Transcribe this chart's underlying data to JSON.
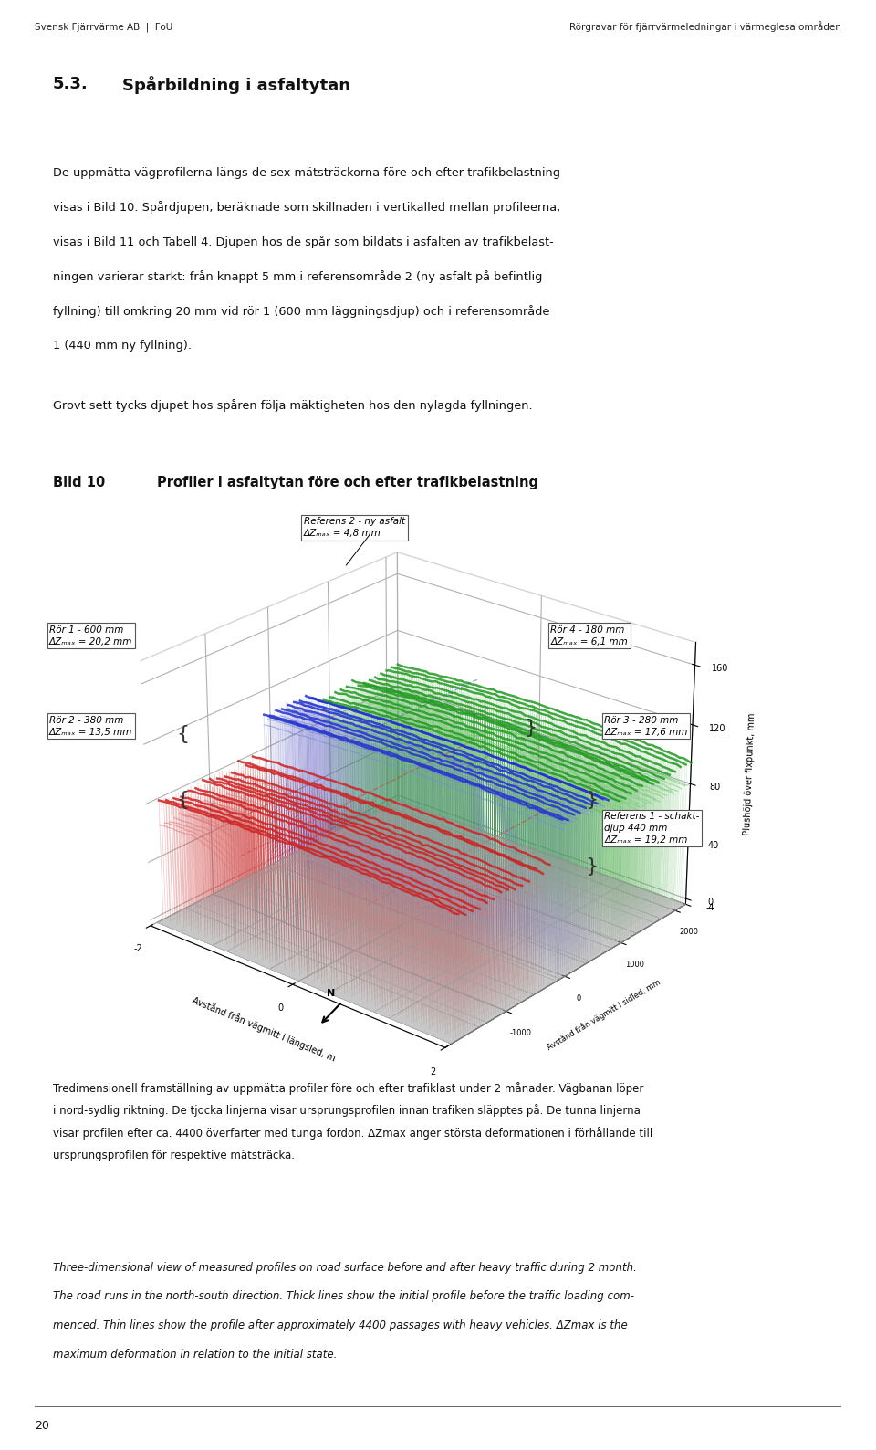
{
  "page_bg": "#ffffff",
  "header_left": "Svensk Fjärrvärme AB  |  FoU",
  "header_right": "Rörgravar för fjärrvärmeledningar i värmeglesa områden",
  "section_title_num": "5.3.",
  "section_title_text": "Spårbildning i asfaltytan",
  "body_text1_lines": [
    "De uppmätta vägprofilerna längs de sex mätsträckorna före och efter trafikbelastning",
    "visas i Bild 10. Spårdjupen, beräknade som skillnaden i vertikalled mellan profileerna,",
    "visas i Bild 11 och Tabell 4. Djupen hos de spår som bildats i asfalten av trafikbelast-",
    "ningen varierar starkt: från knappt 5 mm i referensområde 2 (ny asfalt på befintlig",
    "fyllning) till omkring 20 mm vid rör 1 (600 mm läggningsdjup) och i referensområde",
    "1 (440 mm ny fyllning)."
  ],
  "body_text2": "Grovt sett tycks djupet hos spåren följa mäktigheten hos den nylagda fyllningen.",
  "bild_label": "Bild 10",
  "bild_title": "Profiler i asfaltytan före och efter trafikbelastning",
  "ylabel_3d": "Plushöjd över fixpunkt, mm",
  "xlabel_3d": "Avstånd från vägmitt i längsled, m",
  "zlabel_3d": "Avstånd från vägmitt i sidled, mm",
  "caption_sv_lines": [
    "Tredimensionell framställning av uppmätta profiler före och efter trafiklast under 2 månader. Vägbanan löper",
    "i nord-sydlig riktning. De tjocka linjerna visar ursprungsprofilen innan trafiken släpptes på. De tunna linjerna",
    "visar profilen efter ca. 4400 överfarter med tunga fordon. ΔZmax anger största deformationen i förhållande till",
    "ursprungsprofilen för respektive mätsträcka."
  ],
  "caption_en_lines": [
    "Three-dimensional view of measured profiles on road surface before and after heavy traffic during 2 month.",
    "The road runs in the north-south direction. Thick lines show the initial profile before the traffic loading com-",
    "menced. Thin lines show the profile after approximately 4400 passages with heavy vehicles. ΔZmax is the",
    "maximum deformation in relation to the initial state."
  ],
  "page_num": "20"
}
